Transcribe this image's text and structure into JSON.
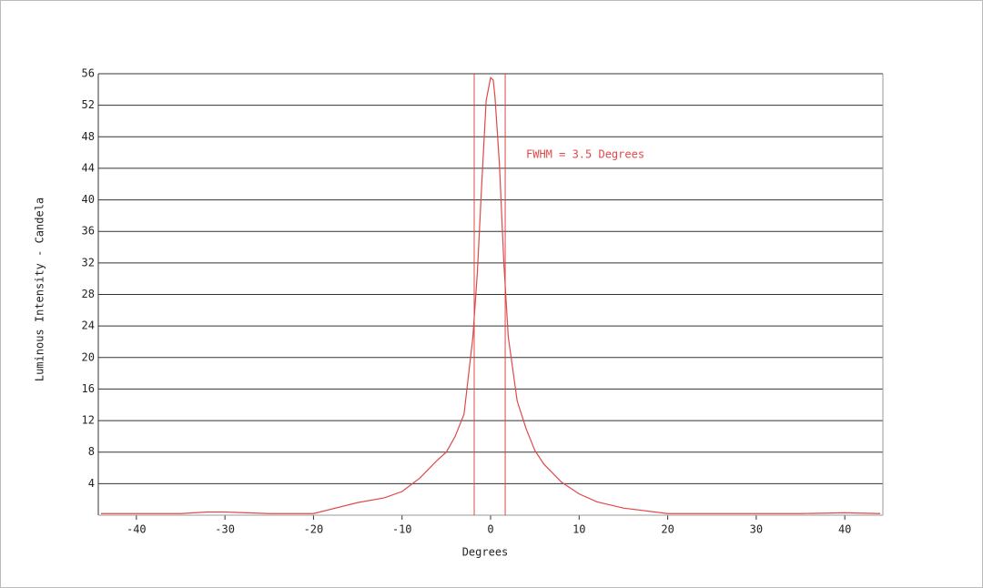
{
  "chart_data": {
    "type": "line",
    "xlabel": "Degrees",
    "ylabel": "Luminous Intensity - Candela",
    "annotation": "FWHM =  3.5 Degrees",
    "fwhm_lines": [
      -1.85,
      1.65
    ],
    "x": [
      -44,
      -35,
      -32,
      -30,
      -25,
      -20,
      -15,
      -12,
      -10,
      -8,
      -6,
      -5,
      -4,
      -3,
      -2,
      -1.5,
      -1,
      -0.5,
      0,
      0.3,
      0.5,
      1,
      1.5,
      2,
      3,
      4,
      5,
      6,
      8,
      10,
      12,
      15,
      20,
      25,
      30,
      35,
      40,
      44
    ],
    "series": [
      {
        "color": "#e04848",
        "values": [
          0.2,
          0.2,
          0.4,
          0.4,
          0.2,
          0.2,
          1.6,
          2.2,
          3.0,
          4.7,
          7.0,
          8.0,
          10.0,
          12.8,
          22.6,
          30.7,
          42.0,
          52.6,
          55.5,
          55.2,
          53.0,
          44.5,
          31.9,
          22.6,
          14.5,
          11.0,
          8.2,
          6.5,
          4.2,
          2.7,
          1.7,
          0.9,
          0.2,
          0.2,
          0.2,
          0.2,
          0.3,
          0.2
        ]
      }
    ],
    "xlim": [
      -44.3,
      44.3
    ],
    "xticks": [
      -40,
      -30,
      -20,
      -10,
      0,
      10,
      20,
      30,
      40
    ],
    "ylim": [
      0,
      56
    ],
    "yticks": [
      4,
      8,
      12,
      16,
      20,
      24,
      28,
      32,
      36,
      40,
      44,
      48,
      52,
      56
    ],
    "grid": true
  }
}
